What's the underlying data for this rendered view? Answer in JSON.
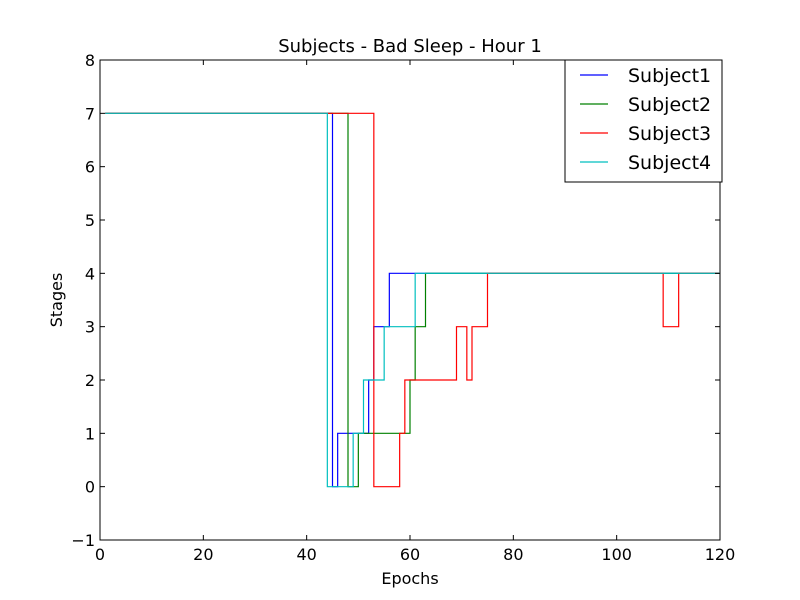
{
  "chart_data": {
    "type": "line",
    "title": "Subjects - Bad Sleep - Hour 1",
    "xlabel": "Epochs",
    "ylabel": "Stages",
    "xlim": [
      0,
      120
    ],
    "ylim": [
      -1,
      8
    ],
    "xticks": [
      0,
      20,
      40,
      60,
      80,
      100,
      120
    ],
    "yticks": [
      -1,
      0,
      1,
      2,
      3,
      4,
      5,
      6,
      7,
      8
    ],
    "xtick_labels": [
      "0",
      "20",
      "40",
      "60",
      "80",
      "100",
      "120"
    ],
    "ytick_labels": [
      "−1",
      "0",
      "1",
      "2",
      "3",
      "4",
      "5",
      "6",
      "7",
      "8"
    ],
    "grid": false,
    "legend_position": "top-right",
    "series": [
      {
        "name": "Subject1",
        "color": "#0000ff",
        "x": [
          1,
          45,
          46,
          50,
          52,
          53,
          56,
          120
        ],
        "y": [
          7,
          0,
          1,
          1,
          2,
          3,
          4,
          4
        ]
      },
      {
        "name": "Subject2",
        "color": "#008000",
        "x": [
          1,
          48,
          50,
          52,
          60,
          61,
          63,
          120
        ],
        "y": [
          7,
          0,
          1,
          1,
          2,
          3,
          4,
          4
        ]
      },
      {
        "name": "Subject3",
        "color": "#ff0000",
        "x": [
          1,
          53,
          58,
          59,
          69,
          71,
          72,
          75,
          109,
          112,
          120
        ],
        "y": [
          7,
          0,
          1,
          2,
          3,
          2,
          3,
          4,
          3,
          4,
          4
        ]
      },
      {
        "name": "Subject4",
        "color": "#00bfbf",
        "x": [
          1,
          44,
          49,
          51,
          55,
          61,
          120
        ],
        "y": [
          7,
          0,
          1,
          2,
          3,
          4,
          4
        ]
      }
    ]
  }
}
